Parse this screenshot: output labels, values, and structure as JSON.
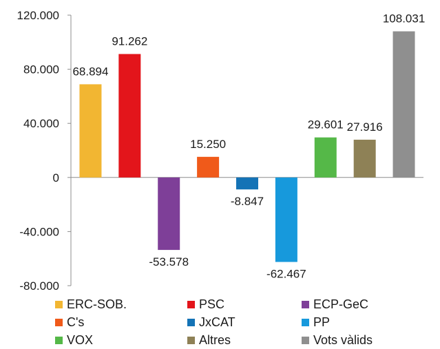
{
  "chart_data": {
    "type": "bar",
    "categories": [
      "ERC-SOB.",
      "PSC",
      "ECP-GeC",
      "C's",
      "JxCAT",
      "PP",
      "VOX",
      "Altres",
      "Vots vàlids"
    ],
    "values": [
      68894,
      91262,
      -53578,
      15250,
      -8847,
      -62467,
      29601,
      27916,
      108031
    ],
    "data_labels": [
      "68.894",
      "91.262",
      "-53.578",
      "15.250",
      "-8.847",
      "-62.467",
      "29.601",
      "27.916",
      "108.031"
    ],
    "colors": [
      "#f2b632",
      "#e3151b",
      "#7e3f98",
      "#f05a1a",
      "#1473b6",
      "#1799dc",
      "#55b848",
      "#8e8156",
      "#8f8f8f"
    ],
    "ylim": [
      -80000,
      120000
    ],
    "yticks": [
      -80000,
      -40000,
      0,
      40000,
      80000,
      120000
    ],
    "ytick_labels": [
      "-80.000",
      "-40.000",
      "0",
      "40.000",
      "80.000",
      "120.000"
    ],
    "title": "",
    "xlabel": "",
    "ylabel": "",
    "grid": false,
    "legend_position": "bottom"
  },
  "legend": {
    "items": [
      {
        "label": "ERC-SOB.",
        "color": "#f2b632"
      },
      {
        "label": "PSC",
        "color": "#e3151b"
      },
      {
        "label": "ECP-GeC",
        "color": "#7e3f98"
      },
      {
        "label": "C's",
        "color": "#f05a1a"
      },
      {
        "label": "JxCAT",
        "color": "#1473b6"
      },
      {
        "label": "PP",
        "color": "#1799dc"
      },
      {
        "label": "VOX",
        "color": "#55b848"
      },
      {
        "label": "Altres",
        "color": "#8e8156"
      },
      {
        "label": "Vots vàlids",
        "color": "#8f8f8f"
      }
    ]
  }
}
